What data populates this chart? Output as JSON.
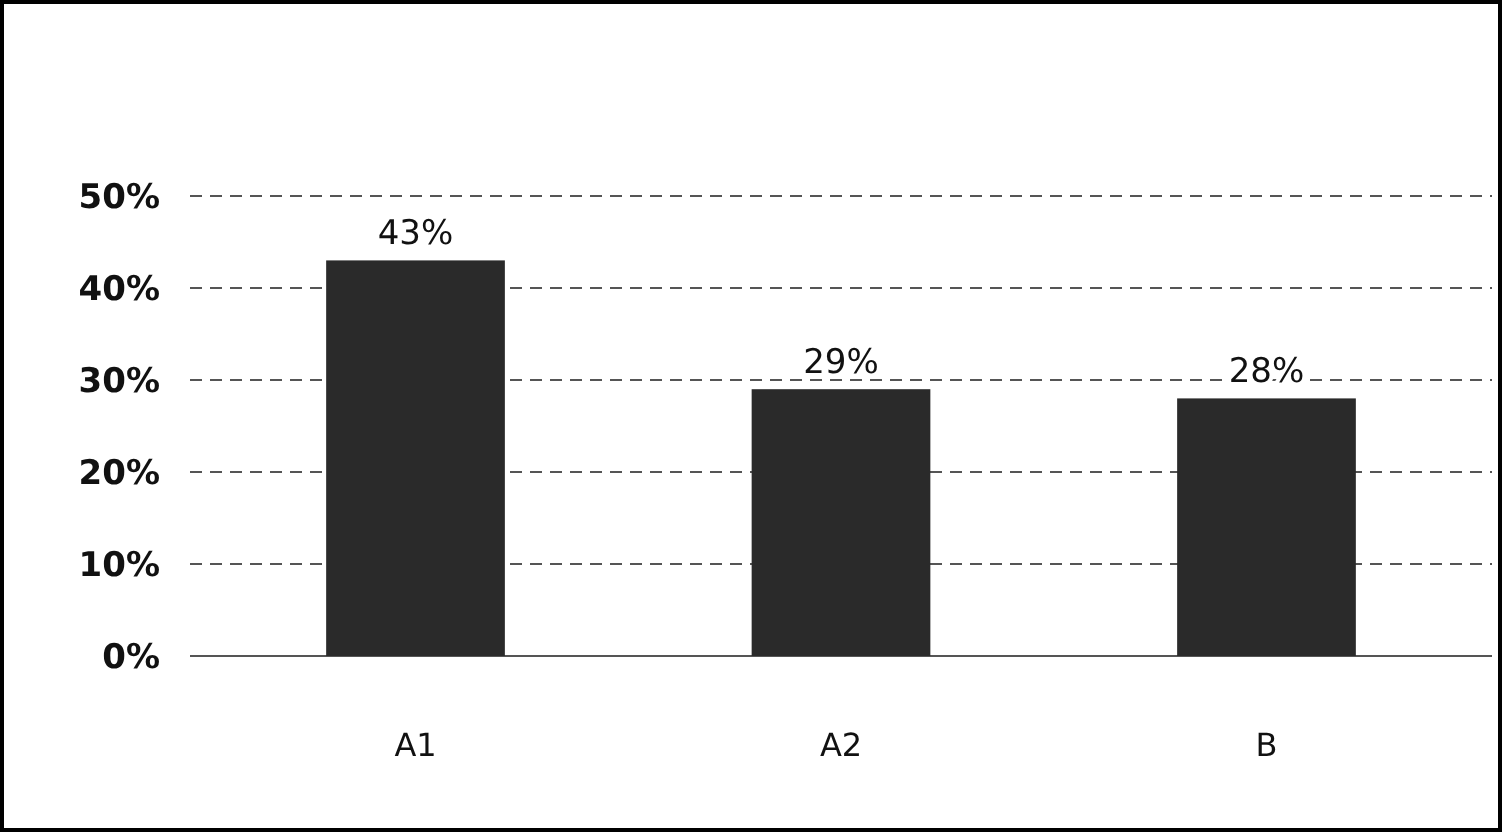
{
  "chart_data": {
    "type": "bar",
    "categories": [
      "A1",
      "A2",
      "B"
    ],
    "values": [
      43,
      29,
      28
    ],
    "color": "#2a2a2a",
    "value_labels": [
      "43%",
      "29%",
      "28%"
    ],
    "ylim": [
      0,
      50
    ],
    "yticks": [
      {
        "value": 0,
        "label": "0%"
      },
      {
        "value": 10,
        "label": "10%"
      },
      {
        "value": 20,
        "label": "20%"
      },
      {
        "value": 30,
        "label": "30%"
      },
      {
        "value": 40,
        "label": "40%"
      },
      {
        "value": 50,
        "label": "50%"
      }
    ],
    "grid": "y"
  }
}
